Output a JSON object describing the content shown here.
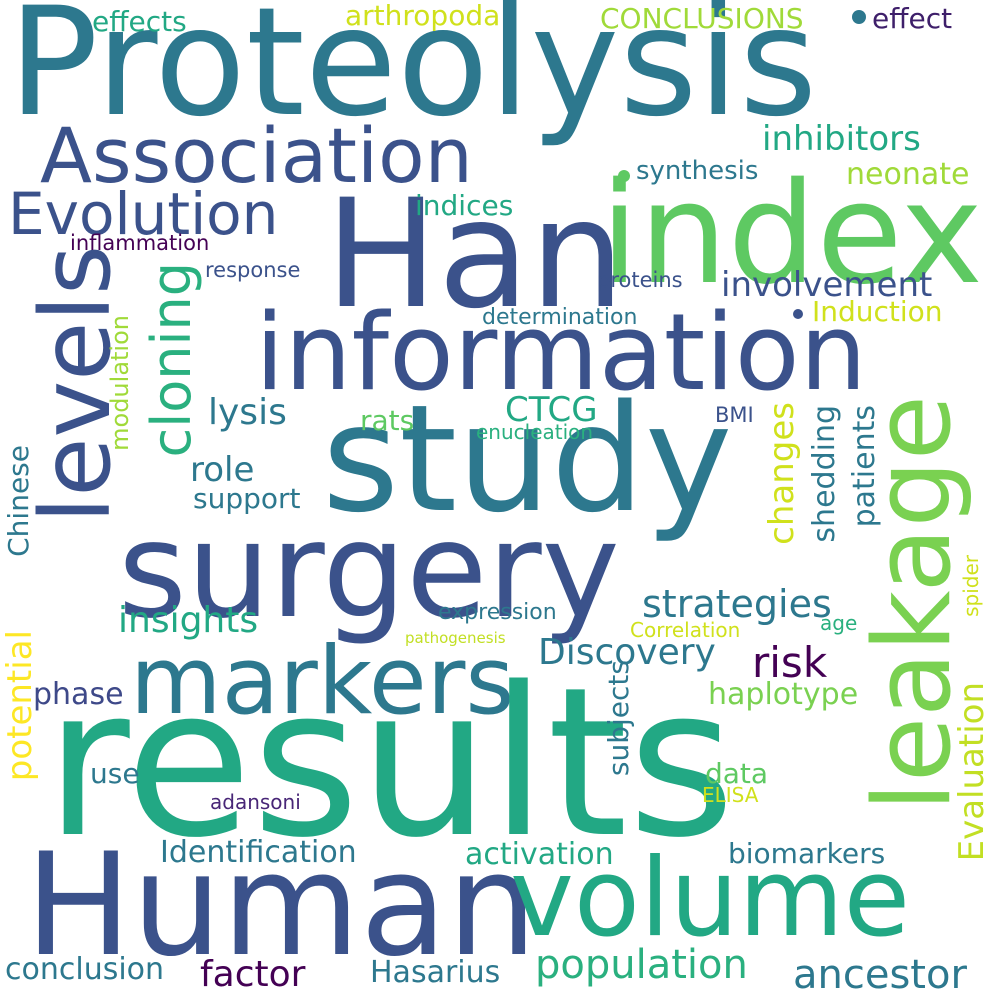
{
  "words": [
    {
      "id": "proteolysis",
      "text": "Proteolysis",
      "color": "#2d788e"
    },
    {
      "id": "index",
      "text": "index",
      "color": "#5ec962"
    },
    {
      "id": "han",
      "text": "Han",
      "color": "#3b528b"
    },
    {
      "id": "association",
      "text": "Association",
      "color": "#3b528b"
    },
    {
      "id": "evolution",
      "text": "Evolution",
      "color": "#3b528b"
    },
    {
      "id": "information",
      "text": "information",
      "color": "#3b528b"
    },
    {
      "id": "study",
      "text": "study",
      "color": "#2d788e"
    },
    {
      "id": "surgery",
      "text": "surgery",
      "color": "#3b528b"
    },
    {
      "id": "levels",
      "text": "levels",
      "color": "#3b528b"
    },
    {
      "id": "leakage",
      "text": "leakage",
      "color": "#7ad151"
    },
    {
      "id": "markers",
      "text": "markers",
      "color": "#2d788e"
    },
    {
      "id": "results",
      "text": "results",
      "color": "#22a884"
    },
    {
      "id": "human",
      "text": "Human",
      "color": "#3b528b"
    },
    {
      "id": "volume",
      "text": "volume",
      "color": "#22a884"
    },
    {
      "id": "cloning",
      "text": "cloning",
      "color": "#2ab07f"
    },
    {
      "id": "effects",
      "text": "effects",
      "color": "#22a884"
    },
    {
      "id": "arthropoda",
      "text": "arthropoda",
      "color": "#d0e11c"
    },
    {
      "id": "conclusions",
      "text": "CONCLUSIONS",
      "color": "#a0da39"
    },
    {
      "id": "effect",
      "text": "effect",
      "color": "#3e1f6a"
    },
    {
      "id": "inhibitors",
      "text": "inhibitors",
      "color": "#22a884"
    },
    {
      "id": "synthesis",
      "text": "synthesis",
      "color": "#2d788e"
    },
    {
      "id": "neonate",
      "text": "neonate",
      "color": "#a0da39"
    },
    {
      "id": "indices",
      "text": "indices",
      "color": "#22a884"
    },
    {
      "id": "inflammation",
      "text": "inflammation",
      "color": "#440154"
    },
    {
      "id": "response",
      "text": "response",
      "color": "#3b528b"
    },
    {
      "id": "proteins",
      "text": "proteins",
      "color": "#3b528b"
    },
    {
      "id": "involvement",
      "text": "involvement",
      "color": "#3b528b"
    },
    {
      "id": "induction",
      "text": "Induction",
      "color": "#d0e11c"
    },
    {
      "id": "determination",
      "text": "determination",
      "color": "#2d788e"
    },
    {
      "id": "lysis",
      "text": "lysis",
      "color": "#2d788e"
    },
    {
      "id": "ctcg",
      "text": "CTCG",
      "color": "#22a884"
    },
    {
      "id": "rats",
      "text": "rats",
      "color": "#5ec962"
    },
    {
      "id": "bmi",
      "text": "BMI",
      "color": "#3b528b"
    },
    {
      "id": "enucleation",
      "text": "enucleation",
      "color": "#2ab07f"
    },
    {
      "id": "role",
      "text": "role",
      "color": "#2d788e"
    },
    {
      "id": "support",
      "text": "support",
      "color": "#2d788e"
    },
    {
      "id": "modulation",
      "text": "modulation",
      "color": "#a0da39"
    },
    {
      "id": "chinese",
      "text": "Chinese",
      "color": "#2d788e"
    },
    {
      "id": "changes",
      "text": "changes",
      "color": "#d0e11c"
    },
    {
      "id": "shedding",
      "text": "shedding",
      "color": "#2d788e"
    },
    {
      "id": "patients",
      "text": "patients",
      "color": "#2d788e"
    },
    {
      "id": "evaluation",
      "text": "Evaluation",
      "color": "#c2df23"
    },
    {
      "id": "spider",
      "text": "spider",
      "color": "#d0e11c"
    },
    {
      "id": "strategies",
      "text": "strategies",
      "color": "#2d788e"
    },
    {
      "id": "insights",
      "text": "insights",
      "color": "#22a884"
    },
    {
      "id": "expression",
      "text": "expression",
      "color": "#2d788e"
    },
    {
      "id": "correlation",
      "text": "Correlation",
      "color": "#d0e11c"
    },
    {
      "id": "age",
      "text": "age",
      "color": "#2ab07f"
    },
    {
      "id": "pathogenesis",
      "text": "pathogenesis",
      "color": "#c2df23"
    },
    {
      "id": "potential",
      "text": "potential",
      "color": "#fde725"
    },
    {
      "id": "discovery",
      "text": "Discovery",
      "color": "#2d788e"
    },
    {
      "id": "risk",
      "text": "risk",
      "color": "#440154"
    },
    {
      "id": "phase",
      "text": "phase",
      "color": "#3e4989"
    },
    {
      "id": "haplotype",
      "text": "haplotype",
      "color": "#7ad151"
    },
    {
      "id": "subjects",
      "text": "subjects",
      "color": "#2d788e"
    },
    {
      "id": "use",
      "text": "use",
      "color": "#2d788e"
    },
    {
      "id": "data",
      "text": "data",
      "color": "#5ec962"
    },
    {
      "id": "adansoni",
      "text": "adansoni",
      "color": "#482677"
    },
    {
      "id": "elisa",
      "text": "ELISA",
      "color": "#d0e11c"
    },
    {
      "id": "identification",
      "text": "Identification",
      "color": "#2d788e"
    },
    {
      "id": "activation",
      "text": "activation",
      "color": "#22a884"
    },
    {
      "id": "biomarkers",
      "text": "biomarkers",
      "color": "#2d788e"
    },
    {
      "id": "conclusion",
      "text": "conclusion",
      "color": "#2d788e"
    },
    {
      "id": "factor",
      "text": "factor",
      "color": "#440154"
    },
    {
      "id": "hasarius",
      "text": "Hasarius",
      "color": "#2d788e"
    },
    {
      "id": "population",
      "text": "population",
      "color": "#2ab07f"
    },
    {
      "id": "ancestor",
      "text": "ancestor",
      "color": "#2d788e"
    }
  ],
  "dots": [
    {
      "id": "dot-a",
      "color": "#2d788e"
    },
    {
      "id": "dot-b",
      "color": "#5ec962"
    },
    {
      "id": "dot-c",
      "color": "#3b528b"
    }
  ]
}
